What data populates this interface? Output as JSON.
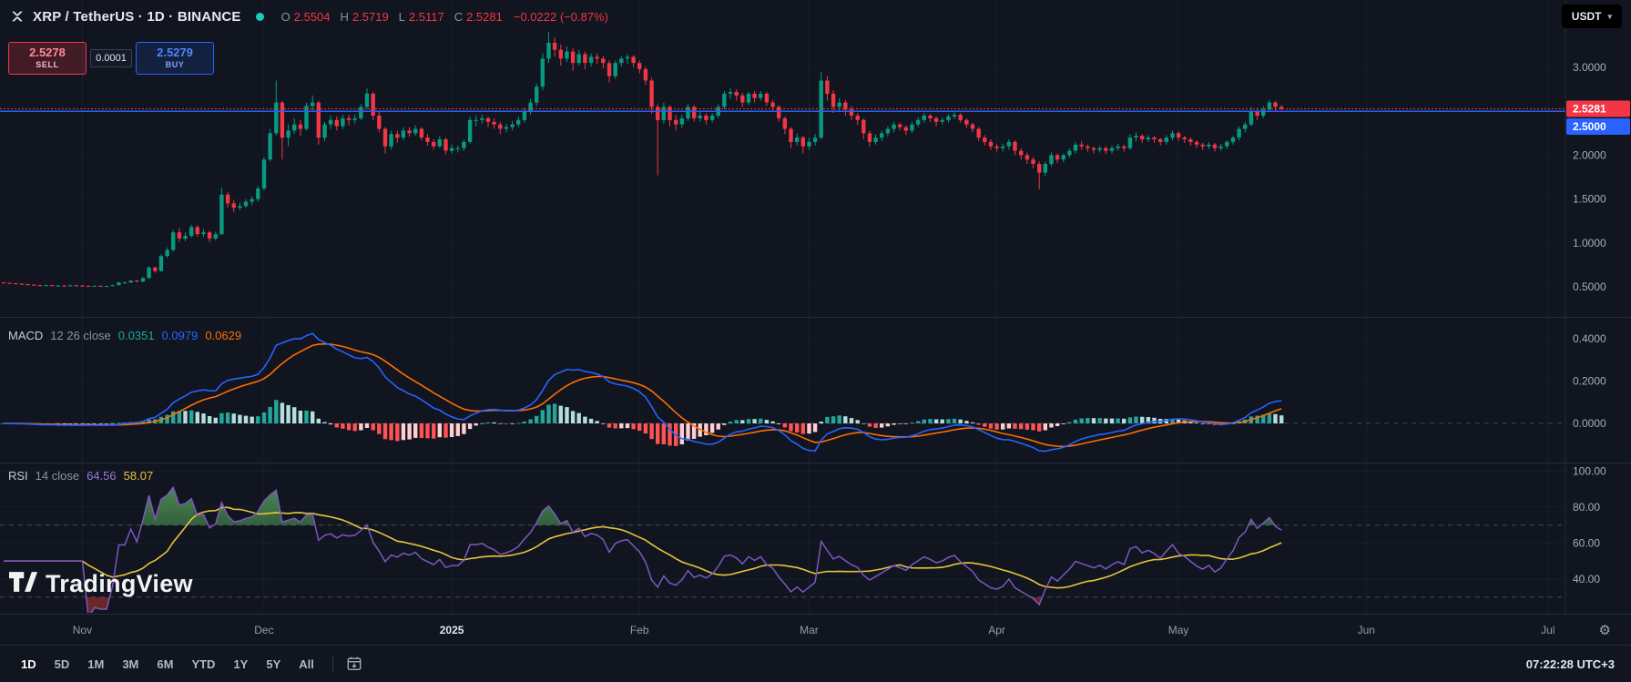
{
  "header": {
    "symbol_title": "XRP / TetherUS · 1D · BINANCE",
    "ohlc": {
      "o_label": "O",
      "o": "2.5504",
      "h_label": "H",
      "h": "2.5719",
      "l_label": "L",
      "l": "2.5117",
      "c_label": "C",
      "c": "2.5281",
      "change": "−0.0222 (−0.87%)"
    },
    "currency_button": "USDT",
    "market_status": "open"
  },
  "trade_widget": {
    "sell_price": "2.5278",
    "sell_label": "SELL",
    "spread": "0.0001",
    "buy_price": "2.5279",
    "buy_label": "BUY"
  },
  "price_axis": {
    "labels": [
      {
        "text": "3.0000",
        "value": 3.0
      },
      {
        "text": "2.0000",
        "value": 2.0
      },
      {
        "text": "1.5000",
        "value": 1.5
      },
      {
        "text": "1.0000",
        "value": 1.0
      },
      {
        "text": "0.5000",
        "value": 0.5
      }
    ],
    "gridlines": [
      3.0,
      2.5,
      2.0,
      1.5,
      1.0,
      0.5
    ],
    "last_price_badge": {
      "text": "2.5281",
      "value": 2.5281,
      "color": "#F23645"
    },
    "line_badge": {
      "text": "2.5000",
      "value": 2.5,
      "color": "#2962FF"
    }
  },
  "macd_pane": {
    "title": "MACD",
    "params": "12 26 close",
    "hist_value": "0.0351",
    "macd_value": "0.0979",
    "signal_value": "0.0629",
    "axis": [
      {
        "text": "0.4000",
        "value": 0.4
      },
      {
        "text": "0.2000",
        "value": 0.2
      },
      {
        "text": "0.0000",
        "value": 0.0
      }
    ]
  },
  "rsi_pane": {
    "title": "RSI",
    "params": "14 close",
    "rsi_value": "64.56",
    "ma_value": "58.07",
    "axis": [
      {
        "text": "100.00",
        "value": 100
      },
      {
        "text": "80.00",
        "value": 80
      },
      {
        "text": "60.00",
        "value": 60
      },
      {
        "text": "40.00",
        "value": 40
      }
    ],
    "bands": [
      70,
      30
    ]
  },
  "time_axis": {
    "labels": [
      {
        "text": "Nov",
        "day": 13
      },
      {
        "text": "Dec",
        "day": 43
      },
      {
        "text": "2025",
        "day": 74,
        "bold": true
      },
      {
        "text": "Feb",
        "day": 105
      },
      {
        "text": "Mar",
        "day": 133
      },
      {
        "text": "Apr",
        "day": 164
      },
      {
        "text": "May",
        "day": 194
      },
      {
        "text": "Jun",
        "day": 225
      },
      {
        "text": "Jul",
        "day": 255
      }
    ]
  },
  "toolbar": {
    "ranges": [
      "1D",
      "5D",
      "1M",
      "3M",
      "6M",
      "YTD",
      "1Y",
      "5Y",
      "All"
    ],
    "active_range": "1D",
    "clock": "07:22:28 UTC+3"
  },
  "watermark": "TradingView",
  "colors": {
    "up": "#089981",
    "down": "#F23645",
    "macd_line": "#2962FF",
    "signal_line": "#FF6D00",
    "hist_up": "#26A69A",
    "hist_up_weak": "#B2DFDB",
    "hist_down": "#FF5252",
    "hist_down_weak": "#FFCDD2",
    "rsi": "#7E57C2",
    "rsi_ma": "#E8C33F",
    "status_dot": "#1ec9b7"
  },
  "chart_data": {
    "type": "candlestick",
    "title": "XRP / TetherUS 1D BINANCE",
    "interval": "1D",
    "horizontal_line": 2.5,
    "last_price": 2.5281,
    "indicators": {
      "macd": {
        "fast": 12,
        "slow": 26,
        "signal": 9
      },
      "rsi": {
        "length": 14,
        "ma": 14
      }
    },
    "candles": [
      [
        0.55,
        0.552,
        0.541,
        0.545
      ],
      [
        0.545,
        0.548,
        0.536,
        0.54
      ],
      [
        0.54,
        0.544,
        0.531,
        0.535
      ],
      [
        0.535,
        0.538,
        0.526,
        0.53
      ],
      [
        0.53,
        0.534,
        0.521,
        0.525
      ],
      [
        0.525,
        0.528,
        0.516,
        0.52
      ],
      [
        0.52,
        0.524,
        0.511,
        0.515
      ],
      [
        0.515,
        0.524,
        0.512,
        0.52
      ],
      [
        0.52,
        0.523,
        0.511,
        0.515
      ],
      [
        0.515,
        0.52,
        0.51,
        0.515
      ],
      [
        0.515,
        0.518,
        0.507,
        0.512
      ],
      [
        0.512,
        0.522,
        0.509,
        0.518
      ],
      [
        0.518,
        0.521,
        0.511,
        0.516
      ],
      [
        0.516,
        0.519,
        0.506,
        0.511
      ],
      [
        0.511,
        0.514,
        0.503,
        0.508
      ],
      [
        0.508,
        0.516,
        0.504,
        0.512
      ],
      [
        0.512,
        0.515,
        0.504,
        0.51
      ],
      [
        0.51,
        0.514,
        0.503,
        0.51
      ],
      [
        0.51,
        0.525,
        0.506,
        0.52
      ],
      [
        0.52,
        0.556,
        0.515,
        0.55
      ],
      [
        0.55,
        0.558,
        0.538,
        0.55
      ],
      [
        0.55,
        0.576,
        0.544,
        0.57
      ],
      [
        0.57,
        0.579,
        0.551,
        0.56
      ],
      [
        0.56,
        0.61,
        0.555,
        0.6
      ],
      [
        0.6,
        0.735,
        0.595,
        0.72
      ],
      [
        0.72,
        0.73,
        0.66,
        0.68
      ],
      [
        0.68,
        0.87,
        0.672,
        0.85
      ],
      [
        0.85,
        0.95,
        0.83,
        0.92
      ],
      [
        0.92,
        1.15,
        0.9,
        1.12
      ],
      [
        1.12,
        1.17,
        1.01,
        1.05
      ],
      [
        1.05,
        1.12,
        1.02,
        1.08
      ],
      [
        1.08,
        1.21,
        1.06,
        1.18
      ],
      [
        1.18,
        1.2,
        1.07,
        1.1
      ],
      [
        1.1,
        1.16,
        1.07,
        1.12
      ],
      [
        1.12,
        1.14,
        1.01,
        1.05
      ],
      [
        1.05,
        1.13,
        1.03,
        1.1
      ],
      [
        1.1,
        1.63,
        1.09,
        1.55
      ],
      [
        1.55,
        1.58,
        1.4,
        1.45
      ],
      [
        1.45,
        1.49,
        1.35,
        1.4
      ],
      [
        1.4,
        1.46,
        1.37,
        1.42
      ],
      [
        1.42,
        1.5,
        1.4,
        1.47
      ],
      [
        1.47,
        1.53,
        1.43,
        1.5
      ],
      [
        1.5,
        1.65,
        1.47,
        1.62
      ],
      [
        1.62,
        1.98,
        1.6,
        1.95
      ],
      [
        1.95,
        2.3,
        1.93,
        2.25
      ],
      [
        2.25,
        2.85,
        2.22,
        2.6
      ],
      [
        2.6,
        2.62,
        1.95,
        2.2
      ],
      [
        2.2,
        2.35,
        2.1,
        2.28
      ],
      [
        2.28,
        2.42,
        2.24,
        2.35
      ],
      [
        2.35,
        2.4,
        2.22,
        2.3
      ],
      [
        2.3,
        2.6,
        2.28,
        2.56
      ],
      [
        2.56,
        2.68,
        2.5,
        2.6
      ],
      [
        2.6,
        2.62,
        2.12,
        2.2
      ],
      [
        2.2,
        2.38,
        2.16,
        2.35
      ],
      [
        2.35,
        2.45,
        2.3,
        2.4
      ],
      [
        2.4,
        2.44,
        2.28,
        2.33
      ],
      [
        2.33,
        2.46,
        2.3,
        2.42
      ],
      [
        2.42,
        2.46,
        2.34,
        2.4
      ],
      [
        2.4,
        2.46,
        2.36,
        2.42
      ],
      [
        2.42,
        2.58,
        2.4,
        2.55
      ],
      [
        2.55,
        2.76,
        2.52,
        2.7
      ],
      [
        2.7,
        2.72,
        2.4,
        2.45
      ],
      [
        2.45,
        2.5,
        2.26,
        2.3
      ],
      [
        2.3,
        2.32,
        2.02,
        2.1
      ],
      [
        2.1,
        2.28,
        2.06,
        2.24
      ],
      [
        2.24,
        2.28,
        2.14,
        2.2
      ],
      [
        2.2,
        2.32,
        2.17,
        2.28
      ],
      [
        2.28,
        2.32,
        2.21,
        2.25
      ],
      [
        2.25,
        2.34,
        2.22,
        2.3
      ],
      [
        2.3,
        2.32,
        2.17,
        2.2
      ],
      [
        2.2,
        2.24,
        2.11,
        2.15
      ],
      [
        2.15,
        2.18,
        2.06,
        2.1
      ],
      [
        2.1,
        2.22,
        2.08,
        2.18
      ],
      [
        2.18,
        2.2,
        2.01,
        2.05
      ],
      [
        2.05,
        2.12,
        2.02,
        2.08
      ],
      [
        2.08,
        2.11,
        2.03,
        2.08
      ],
      [
        2.08,
        2.18,
        2.05,
        2.15
      ],
      [
        2.15,
        2.44,
        2.13,
        2.4
      ],
      [
        2.4,
        2.45,
        2.33,
        2.4
      ],
      [
        2.4,
        2.46,
        2.36,
        2.42
      ],
      [
        2.42,
        2.44,
        2.32,
        2.38
      ],
      [
        2.38,
        2.42,
        2.3,
        2.35
      ],
      [
        2.35,
        2.38,
        2.24,
        2.3
      ],
      [
        2.3,
        2.36,
        2.26,
        2.32
      ],
      [
        2.32,
        2.39,
        2.28,
        2.35
      ],
      [
        2.35,
        2.44,
        2.32,
        2.4
      ],
      [
        2.4,
        2.54,
        2.37,
        2.5
      ],
      [
        2.5,
        2.64,
        2.46,
        2.6
      ],
      [
        2.6,
        2.82,
        2.56,
        2.78
      ],
      [
        2.78,
        3.16,
        2.74,
        3.1
      ],
      [
        3.1,
        3.4,
        3.05,
        3.28
      ],
      [
        3.28,
        3.34,
        3.12,
        3.2
      ],
      [
        3.2,
        3.26,
        3.02,
        3.1
      ],
      [
        3.1,
        3.24,
        3.06,
        3.18
      ],
      [
        3.18,
        3.22,
        2.96,
        3.05
      ],
      [
        3.05,
        3.2,
        3.02,
        3.15
      ],
      [
        3.15,
        3.18,
        2.98,
        3.05
      ],
      [
        3.05,
        3.16,
        3.01,
        3.12
      ],
      [
        3.12,
        3.16,
        3.04,
        3.1
      ],
      [
        3.1,
        3.13,
        2.99,
        3.05
      ],
      [
        3.05,
        3.08,
        2.83,
        2.9
      ],
      [
        2.9,
        3.08,
        2.87,
        3.05
      ],
      [
        3.05,
        3.13,
        3.01,
        3.1
      ],
      [
        3.1,
        3.15,
        3.04,
        3.12
      ],
      [
        3.12,
        3.14,
        3.0,
        3.05
      ],
      [
        3.05,
        3.08,
        2.93,
        2.98
      ],
      [
        2.98,
        3.01,
        2.8,
        2.85
      ],
      [
        2.85,
        2.88,
        2.47,
        2.55
      ],
      [
        2.55,
        2.58,
        1.77,
        2.4
      ],
      [
        2.4,
        2.6,
        2.36,
        2.55
      ],
      [
        2.55,
        2.57,
        2.33,
        2.4
      ],
      [
        2.4,
        2.46,
        2.28,
        2.35
      ],
      [
        2.35,
        2.46,
        2.31,
        2.42
      ],
      [
        2.42,
        2.58,
        2.39,
        2.55
      ],
      [
        2.55,
        2.57,
        2.38,
        2.42
      ],
      [
        2.42,
        2.49,
        2.38,
        2.45
      ],
      [
        2.45,
        2.48,
        2.35,
        2.4
      ],
      [
        2.4,
        2.48,
        2.37,
        2.45
      ],
      [
        2.45,
        2.58,
        2.42,
        2.55
      ],
      [
        2.55,
        2.73,
        2.52,
        2.7
      ],
      [
        2.7,
        2.76,
        2.64,
        2.72
      ],
      [
        2.72,
        2.75,
        2.62,
        2.68
      ],
      [
        2.68,
        2.71,
        2.55,
        2.6
      ],
      [
        2.6,
        2.72,
        2.57,
        2.7
      ],
      [
        2.7,
        2.73,
        2.6,
        2.65
      ],
      [
        2.65,
        2.73,
        2.62,
        2.7
      ],
      [
        2.7,
        2.72,
        2.56,
        2.6
      ],
      [
        2.6,
        2.63,
        2.5,
        2.55
      ],
      [
        2.55,
        2.57,
        2.38,
        2.42
      ],
      [
        2.42,
        2.44,
        2.24,
        2.3
      ],
      [
        2.3,
        2.32,
        2.08,
        2.15
      ],
      [
        2.15,
        2.25,
        2.11,
        2.2
      ],
      [
        2.2,
        2.22,
        2.02,
        2.1
      ],
      [
        2.1,
        2.2,
        2.06,
        2.15
      ],
      [
        2.15,
        2.24,
        2.11,
        2.2
      ],
      [
        2.2,
        2.95,
        2.18,
        2.85
      ],
      [
        2.85,
        2.9,
        2.62,
        2.7
      ],
      [
        2.7,
        2.74,
        2.48,
        2.55
      ],
      [
        2.55,
        2.65,
        2.5,
        2.6
      ],
      [
        2.6,
        2.63,
        2.45,
        2.52
      ],
      [
        2.52,
        2.56,
        2.4,
        2.45
      ],
      [
        2.45,
        2.48,
        2.34,
        2.4
      ],
      [
        2.4,
        2.42,
        2.18,
        2.25
      ],
      [
        2.25,
        2.28,
        2.1,
        2.15
      ],
      [
        2.15,
        2.24,
        2.12,
        2.2
      ],
      [
        2.2,
        2.28,
        2.16,
        2.25
      ],
      [
        2.25,
        2.33,
        2.21,
        2.3
      ],
      [
        2.3,
        2.38,
        2.26,
        2.35
      ],
      [
        2.35,
        2.37,
        2.28,
        2.32
      ],
      [
        2.32,
        2.34,
        2.23,
        2.28
      ],
      [
        2.28,
        2.38,
        2.25,
        2.35
      ],
      [
        2.35,
        2.43,
        2.32,
        2.4
      ],
      [
        2.4,
        2.48,
        2.37,
        2.45
      ],
      [
        2.45,
        2.47,
        2.38,
        2.42
      ],
      [
        2.42,
        2.44,
        2.33,
        2.38
      ],
      [
        2.38,
        2.43,
        2.35,
        2.4
      ],
      [
        2.4,
        2.47,
        2.37,
        2.44
      ],
      [
        2.44,
        2.49,
        2.41,
        2.46
      ],
      [
        2.46,
        2.48,
        2.37,
        2.4
      ],
      [
        2.4,
        2.42,
        2.31,
        2.35
      ],
      [
        2.35,
        2.37,
        2.26,
        2.3
      ],
      [
        2.3,
        2.32,
        2.16,
        2.2
      ],
      [
        2.2,
        2.23,
        2.11,
        2.15
      ],
      [
        2.15,
        2.18,
        2.06,
        2.1
      ],
      [
        2.1,
        2.13,
        2.04,
        2.08
      ],
      [
        2.08,
        2.13,
        2.04,
        2.1
      ],
      [
        2.1,
        2.18,
        2.06,
        2.15
      ],
      [
        2.15,
        2.17,
        2.0,
        2.05
      ],
      [
        2.05,
        2.08,
        1.95,
        2.0
      ],
      [
        2.0,
        2.03,
        1.9,
        1.95
      ],
      [
        1.95,
        1.98,
        1.85,
        1.9
      ],
      [
        1.9,
        1.93,
        1.61,
        1.8
      ],
      [
        1.8,
        1.93,
        1.76,
        1.9
      ],
      [
        1.9,
        2.03,
        1.87,
        2.0
      ],
      [
        2.0,
        2.02,
        1.91,
        1.95
      ],
      [
        1.95,
        2.02,
        1.92,
        2.0
      ],
      [
        2.0,
        2.08,
        1.97,
        2.05
      ],
      [
        2.05,
        2.15,
        2.02,
        2.12
      ],
      [
        2.12,
        2.16,
        2.06,
        2.1
      ],
      [
        2.1,
        2.12,
        2.04,
        2.08
      ],
      [
        2.08,
        2.1,
        2.02,
        2.06
      ],
      [
        2.06,
        2.11,
        2.03,
        2.08
      ],
      [
        2.08,
        2.1,
        2.01,
        2.05
      ],
      [
        2.05,
        2.11,
        2.02,
        2.08
      ],
      [
        2.08,
        2.13,
        2.05,
        2.1
      ],
      [
        2.1,
        2.12,
        2.04,
        2.08
      ],
      [
        2.08,
        2.24,
        2.06,
        2.2
      ],
      [
        2.2,
        2.26,
        2.16,
        2.22
      ],
      [
        2.22,
        2.24,
        2.14,
        2.18
      ],
      [
        2.18,
        2.23,
        2.15,
        2.2
      ],
      [
        2.2,
        2.22,
        2.14,
        2.18
      ],
      [
        2.18,
        2.2,
        2.11,
        2.15
      ],
      [
        2.15,
        2.23,
        2.12,
        2.2
      ],
      [
        2.2,
        2.28,
        2.17,
        2.25
      ],
      [
        2.25,
        2.27,
        2.16,
        2.2
      ],
      [
        2.2,
        2.22,
        2.14,
        2.18
      ],
      [
        2.18,
        2.2,
        2.11,
        2.15
      ],
      [
        2.15,
        2.17,
        2.08,
        2.12
      ],
      [
        2.12,
        2.14,
        2.06,
        2.1
      ],
      [
        2.1,
        2.15,
        2.07,
        2.12
      ],
      [
        2.12,
        2.14,
        2.04,
        2.08
      ],
      [
        2.08,
        2.13,
        2.05,
        2.1
      ],
      [
        2.1,
        2.17,
        2.07,
        2.15
      ],
      [
        2.15,
        2.22,
        2.12,
        2.2
      ],
      [
        2.2,
        2.33,
        2.17,
        2.3
      ],
      [
        2.3,
        2.38,
        2.26,
        2.35
      ],
      [
        2.35,
        2.55,
        2.33,
        2.5
      ],
      [
        2.5,
        2.54,
        2.4,
        2.45
      ],
      [
        2.45,
        2.56,
        2.42,
        2.52
      ],
      [
        2.52,
        2.63,
        2.49,
        2.6
      ],
      [
        2.6,
        2.62,
        2.5,
        2.55
      ],
      [
        2.5504,
        2.5719,
        2.5117,
        2.5281
      ]
    ]
  }
}
